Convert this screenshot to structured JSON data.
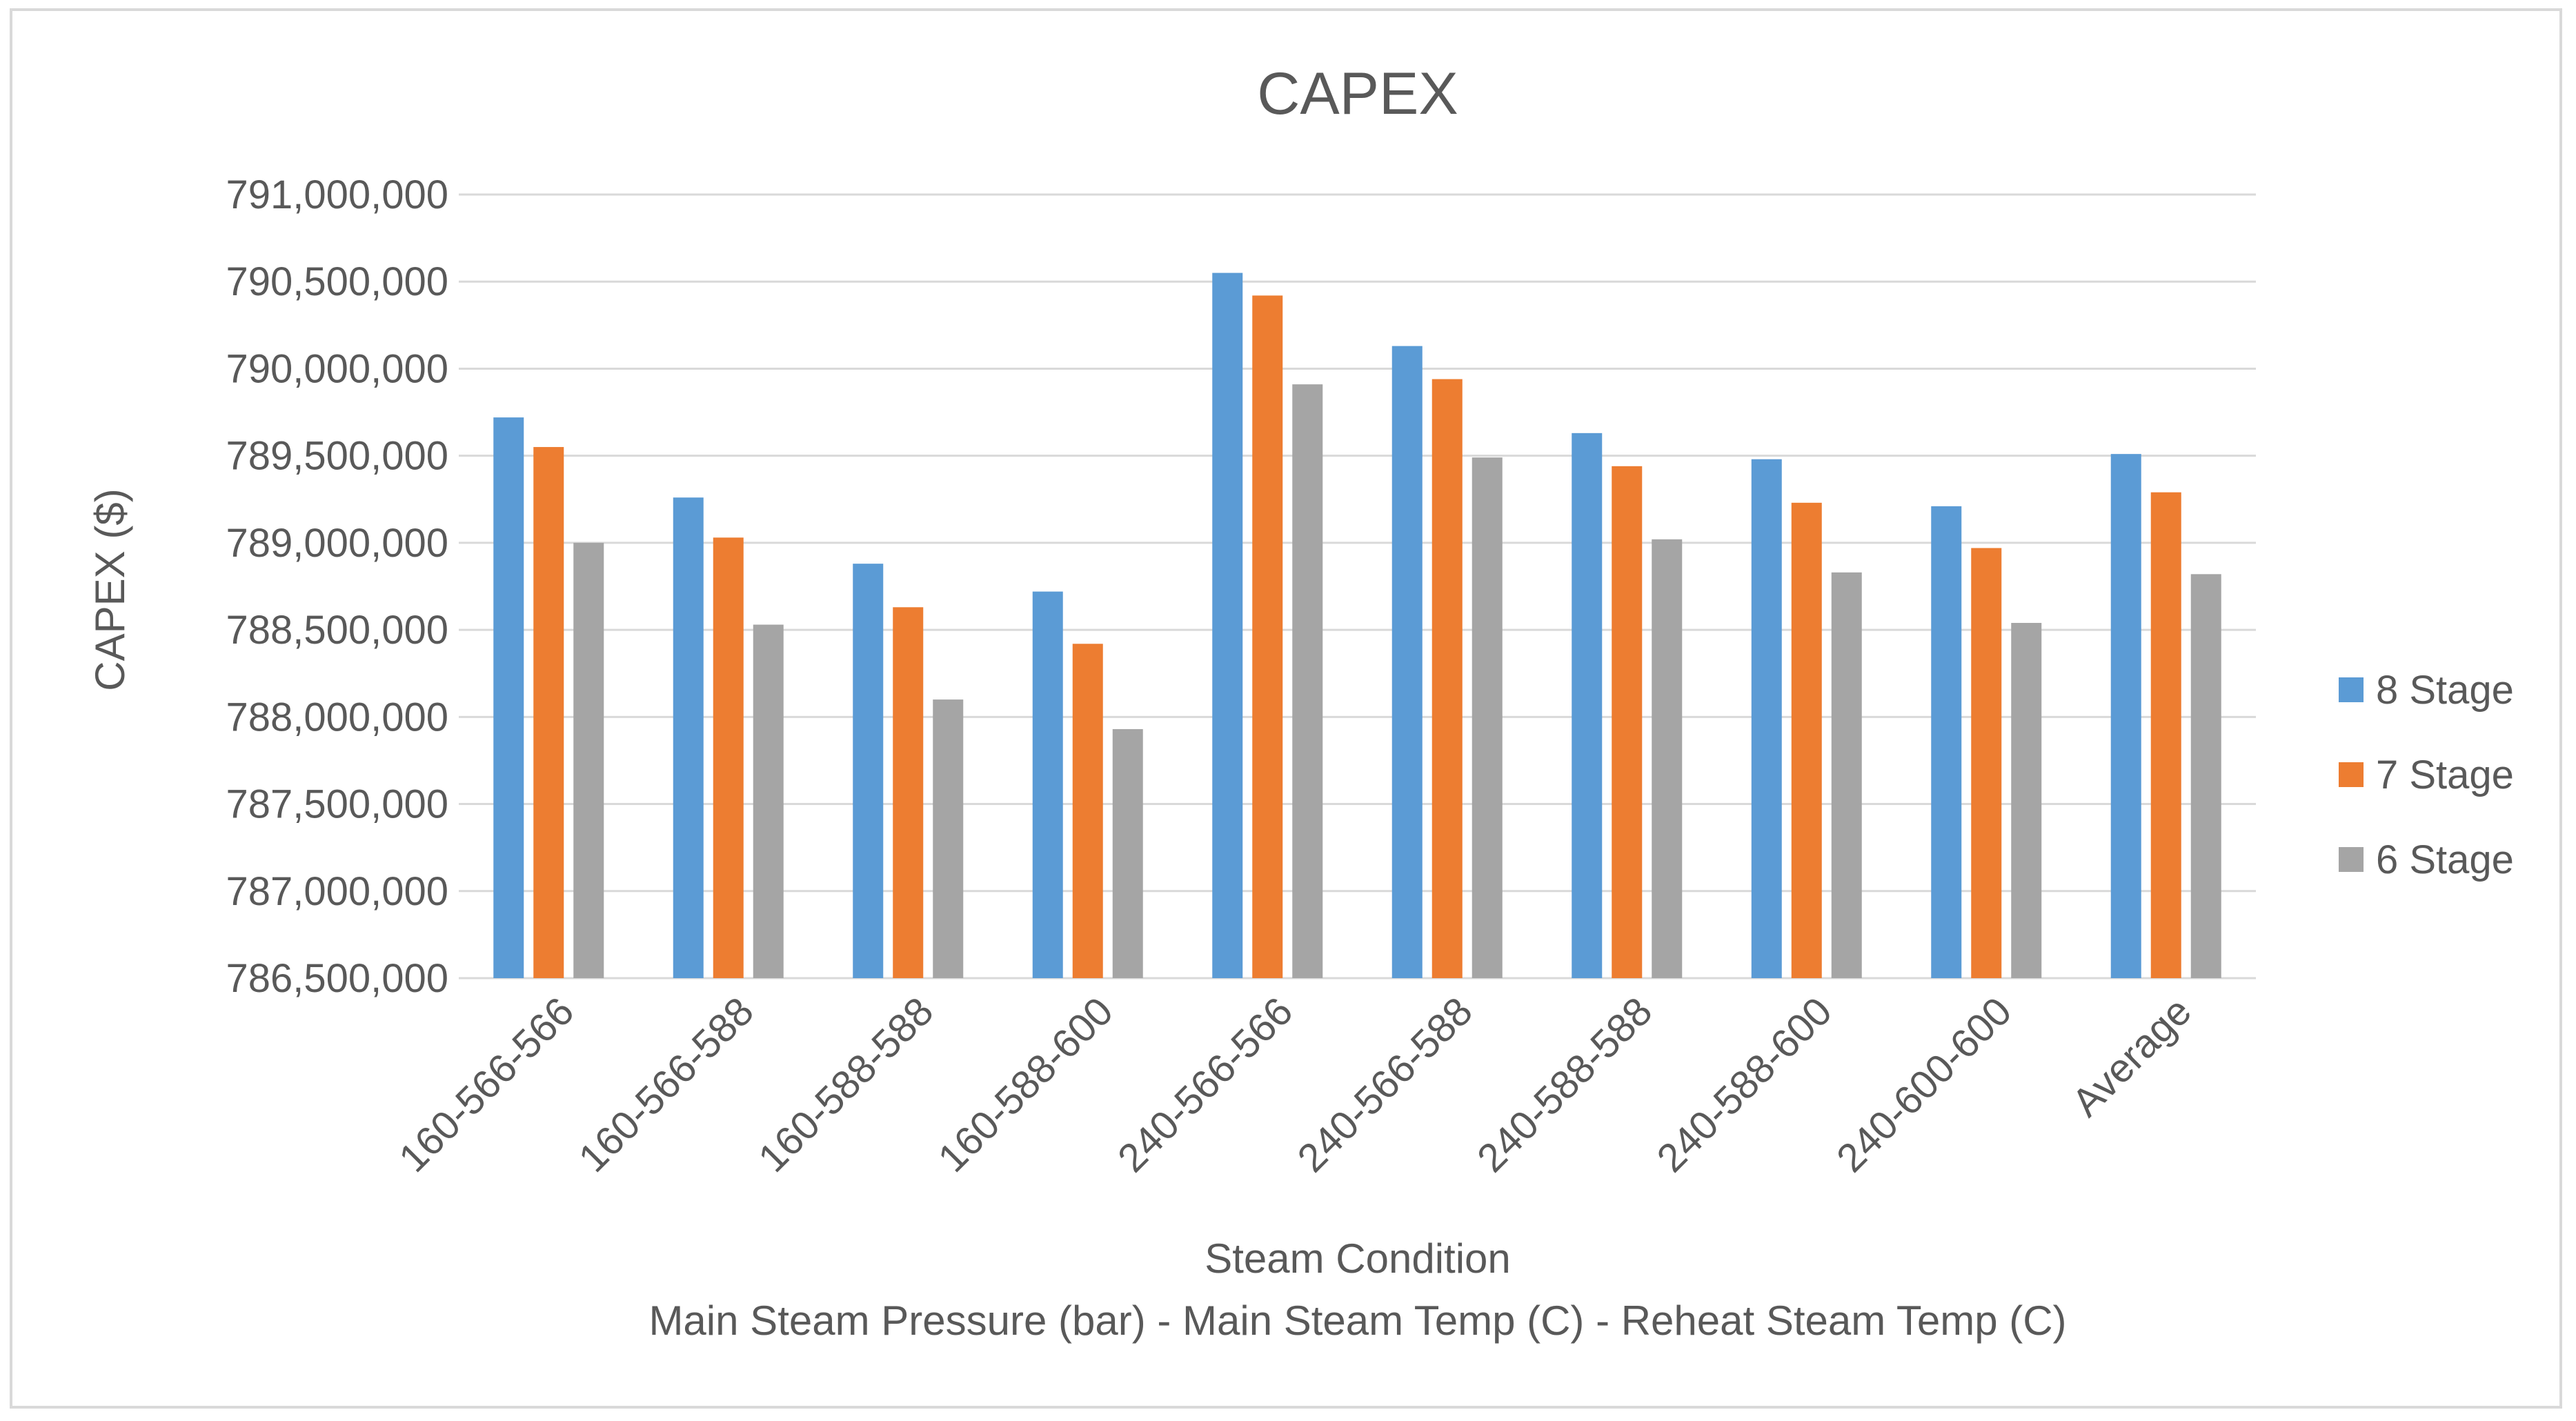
{
  "chart_data": {
    "type": "bar",
    "title": "CAPEX",
    "ylabel": "CAPEX ($)",
    "xlabel": "Steam Condition",
    "xlabel_sub": "Main Steam Pressure (bar) - Main Steam Temp (C) - Reheat Steam Temp (C)",
    "ylim": [
      786500000,
      791000000
    ],
    "ytick_step": 500000,
    "yticks": [
      "786,500,000",
      "787,000,000",
      "787,500,000",
      "788,000,000",
      "788,500,000",
      "789,000,000",
      "789,500,000",
      "790,000,000",
      "790,500,000",
      "791,000,000"
    ],
    "categories": [
      "160-566-566",
      "160-566-588",
      "160-588-588",
      "160-588-600",
      "240-566-566",
      "240-566-588",
      "240-588-588",
      "240-588-600",
      "240-600-600",
      "Average"
    ],
    "series": [
      {
        "name": "8 Stage",
        "color": "#5b9bd5",
        "values": [
          789720000,
          789260000,
          788880000,
          788720000,
          790550000,
          790130000,
          789630000,
          789480000,
          789210000,
          789510000
        ]
      },
      {
        "name": "7 Stage",
        "color": "#ed7d31",
        "values": [
          789550000,
          789030000,
          788630000,
          788420000,
          790420000,
          789940000,
          789440000,
          789230000,
          788970000,
          789290000
        ]
      },
      {
        "name": "6 Stage",
        "color": "#a5a5a5",
        "values": [
          789000000,
          788530000,
          788100000,
          787930000,
          789910000,
          789490000,
          789020000,
          788830000,
          788540000,
          788820000
        ]
      }
    ],
    "gridlines": true,
    "legend_position": "right"
  }
}
